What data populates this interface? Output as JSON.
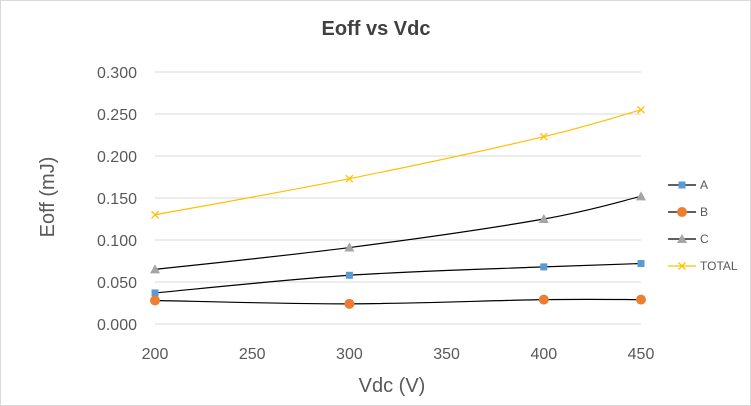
{
  "chart_data": {
    "type": "line",
    "title": "Eoff vs Vdc",
    "xlabel": "Vdc (V)",
    "ylabel": "Eoff (mJ)",
    "x": [
      200,
      300,
      400,
      450
    ],
    "xlim": [
      200,
      450
    ],
    "xticks": [
      "200",
      "250",
      "300",
      "350",
      "400",
      "450"
    ],
    "ylim": [
      0,
      0.3
    ],
    "yticks": [
      "0.000",
      "0.050",
      "0.100",
      "0.150",
      "0.200",
      "0.250",
      "0.300"
    ],
    "grid": "horizontal",
    "legend_position": "right",
    "series": [
      {
        "name": "A",
        "values": [
          0.037,
          0.058,
          0.068,
          0.072
        ],
        "line_color": "#000000",
        "marker_color": "#5b9bd5",
        "marker": "square"
      },
      {
        "name": "B",
        "values": [
          0.028,
          0.024,
          0.029,
          0.029
        ],
        "line_color": "#000000",
        "marker_color": "#ed7d31",
        "marker": "circle"
      },
      {
        "name": "C",
        "values": [
          0.065,
          0.091,
          0.125,
          0.152
        ],
        "line_color": "#000000",
        "marker_color": "#a5a5a5",
        "marker": "triangle"
      },
      {
        "name": "TOTAL",
        "values": [
          0.13,
          0.173,
          0.223,
          0.255
        ],
        "line_color": "#ffc000",
        "marker_color": "#ffc000",
        "marker": "x"
      }
    ]
  }
}
